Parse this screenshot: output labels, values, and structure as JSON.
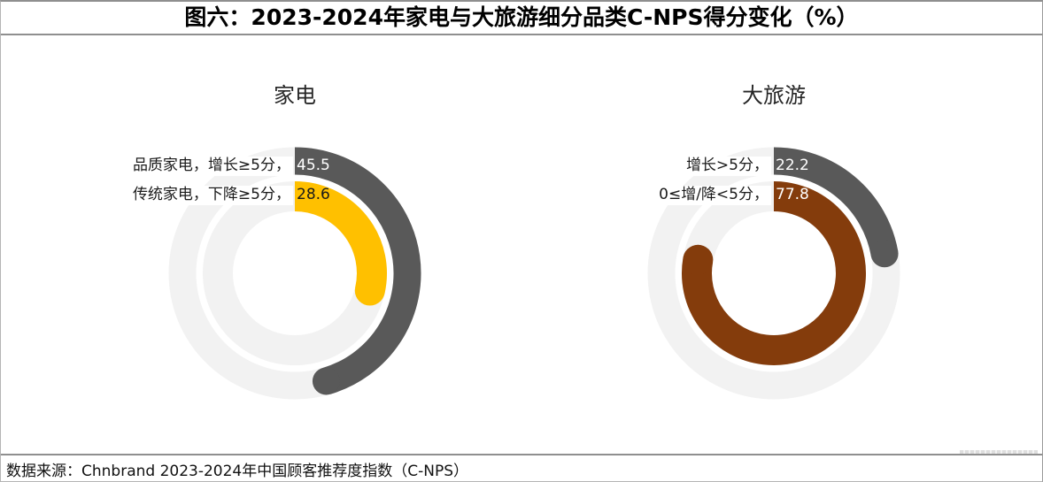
{
  "figure": {
    "title": "图六：2023-2024年家电与大旅游细分品类C-NPS得分变化（%）",
    "source_note": "数据来源：Chnbrand 2023-2024年中国顾客推荐度指数（C-NPS）"
  },
  "colors": {
    "arc_gray": "#595959",
    "arc_yellow": "#FFC000",
    "arc_brown": "#843C0C",
    "track": "#F2F2F2",
    "label_text": "#1A1A1A",
    "frame_border": "#8F8F8F"
  },
  "chart_data": [
    {
      "type": "donut",
      "title": "家电",
      "unit": "%",
      "max": 100,
      "start_angle": "12-oclock",
      "direction": "clockwise",
      "rings": [
        {
          "ring": "outer",
          "label": "品质家电，增长≥5分，",
          "value": 45.5,
          "color": "#595959",
          "value_text_color": "#FFFFFF"
        },
        {
          "ring": "inner",
          "label": "传统家电，下降≥5分，",
          "value": 28.6,
          "color": "#FFC000",
          "value_text_color": "#1A1A1A"
        }
      ]
    },
    {
      "type": "donut",
      "title": "大旅游",
      "unit": "%",
      "max": 100,
      "start_angle": "12-oclock",
      "direction": "clockwise",
      "rings": [
        {
          "ring": "outer",
          "label": "增长>5分，",
          "value": 22.2,
          "color": "#595959",
          "value_text_color": "#FFFFFF"
        },
        {
          "ring": "inner",
          "label": "0≤增/降<5分，",
          "value": 77.8,
          "color": "#843C0C",
          "value_text_color": "#FFFFFF"
        }
      ]
    }
  ]
}
